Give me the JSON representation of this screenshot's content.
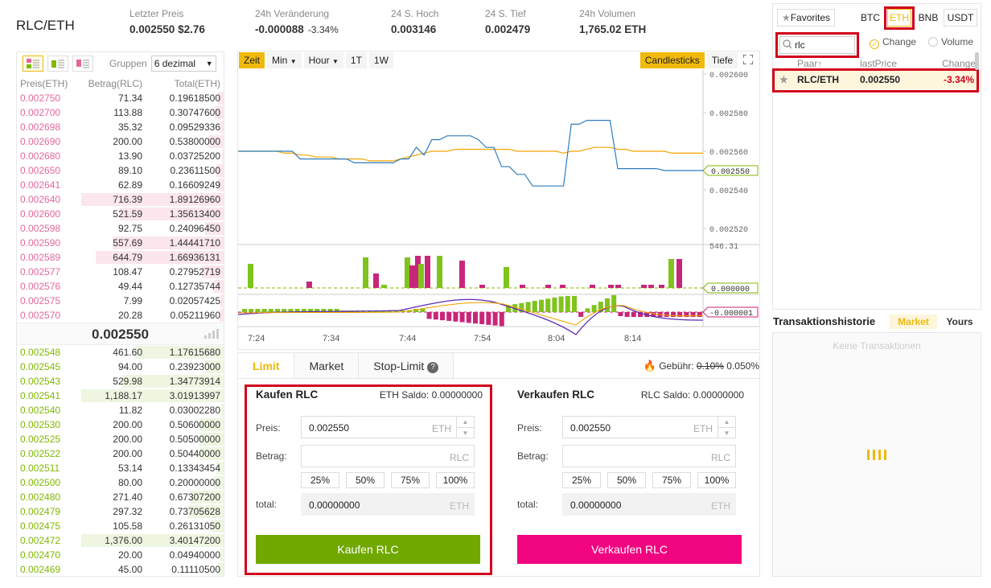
{
  "ticker": {
    "pair": "RLC/ETH",
    "last_price_label": "Letzter Preis",
    "last_price": "0.002550",
    "last_price_usd": "$2.76",
    "change_label": "24h Veränderung",
    "change": "-0.000088",
    "change_pct": "-3.34%",
    "high_label": "24 S. Hoch",
    "high": "0.003146",
    "low_label": "24 S. Tief",
    "low": "0.002479",
    "volume_label": "24h Volumen",
    "volume": "1,765.02 ETH"
  },
  "orderbook": {
    "group_label": "Gruppen",
    "group_value": "6 dezimal",
    "headers": [
      "Preis(ETH)",
      "Betrag(RLC)",
      "Total(ETH)"
    ],
    "asks": [
      {
        "p": "0.002750",
        "a": "71.34",
        "t": "0.19618500",
        "d": 0.04
      },
      {
        "p": "0.002700",
        "a": "113.88",
        "t": "0.30747600",
        "d": 0.06
      },
      {
        "p": "0.002698",
        "a": "35.32",
        "t": "0.09529336",
        "d": 0.02
      },
      {
        "p": "0.002690",
        "a": "200.00",
        "t": "0.53800000",
        "d": 0.11
      },
      {
        "p": "0.002680",
        "a": "13.90",
        "t": "0.03725200",
        "d": 0.01
      },
      {
        "p": "0.002650",
        "a": "89.10",
        "t": "0.23611500",
        "d": 0.05
      },
      {
        "p": "0.002641",
        "a": "62.89",
        "t": "0.16609249",
        "d": 0.04
      },
      {
        "p": "0.002640",
        "a": "716.39",
        "t": "1.89126960",
        "d": 1.0
      },
      {
        "p": "0.002600",
        "a": "521.59",
        "t": "1.35613400",
        "d": 0.73
      },
      {
        "p": "0.002598",
        "a": "92.75",
        "t": "0.24096450",
        "d": 0.13
      },
      {
        "p": "0.002590",
        "a": "557.69",
        "t": "1.44441710",
        "d": 0.78
      },
      {
        "p": "0.002589",
        "a": "644.79",
        "t": "1.66936131",
        "d": 0.9
      },
      {
        "p": "0.002577",
        "a": "108.47",
        "t": "0.27952719",
        "d": 0.15
      },
      {
        "p": "0.002576",
        "a": "49.44",
        "t": "0.12735744",
        "d": 0.07
      },
      {
        "p": "0.002575",
        "a": "7.99",
        "t": "0.02057425",
        "d": 0.02
      },
      {
        "p": "0.002570",
        "a": "20.28",
        "t": "0.05211960",
        "d": 0.03
      }
    ],
    "mid_price": "0.002550",
    "bids": [
      {
        "p": "0.002548",
        "a": "461.60",
        "t": "1.17615680",
        "d": 0.62
      },
      {
        "p": "0.002545",
        "a": "94.00",
        "t": "0.23923000",
        "d": 0.13
      },
      {
        "p": "0.002543",
        "a": "529.98",
        "t": "1.34773914",
        "d": 0.71
      },
      {
        "p": "0.002541",
        "a": "1,188.17",
        "t": "3.01913997",
        "d": 1.0
      },
      {
        "p": "0.002540",
        "a": "11.82",
        "t": "0.03002280",
        "d": 0.02
      },
      {
        "p": "0.002530",
        "a": "200.00",
        "t": "0.50600000",
        "d": 0.17
      },
      {
        "p": "0.002525",
        "a": "200.00",
        "t": "0.50500000",
        "d": 0.17
      },
      {
        "p": "0.002522",
        "a": "200.00",
        "t": "0.50440000",
        "d": 0.17
      },
      {
        "p": "0.002511",
        "a": "53.14",
        "t": "0.13343454",
        "d": 0.05
      },
      {
        "p": "0.002500",
        "a": "80.00",
        "t": "0.20000000",
        "d": 0.07
      },
      {
        "p": "0.002480",
        "a": "271.40",
        "t": "0.67307200",
        "d": 0.23
      },
      {
        "p": "0.002479",
        "a": "297.32",
        "t": "0.73705628",
        "d": 0.25
      },
      {
        "p": "0.002475",
        "a": "105.58",
        "t": "0.26131050",
        "d": 0.09
      },
      {
        "p": "0.002472",
        "a": "1,376.00",
        "t": "3.40147200",
        "d": 1.0
      },
      {
        "p": "0.002470",
        "a": "20.00",
        "t": "0.04940000",
        "d": 0.02
      },
      {
        "p": "0.002469",
        "a": "45.00",
        "t": "0.11110500",
        "d": 0.04
      }
    ]
  },
  "chart": {
    "toolbar": [
      "Zeit",
      "Min",
      "Hour",
      "1T",
      "1W"
    ],
    "candlesticks": "Candlesticks",
    "depth": "Tiefe",
    "price_ticks": [
      "0.002600",
      "0.002580",
      "0.002560",
      "0.002540",
      "0.002520"
    ],
    "price_tag": "0.002550",
    "vol_top": "546.31",
    "vol_tag": "0.000000",
    "macd_tag": "-0.000001",
    "time_labels": [
      "7:24",
      "7:34",
      "7:44",
      "7:54",
      "8:04",
      "8:14"
    ],
    "price_line": [
      0.00256,
      0.00256,
      0.00256,
      0.00256,
      0.00256,
      0.00256,
      0.00256,
      0.00256,
      0.002556,
      0.002556,
      0.002556,
      0.002556,
      0.002556,
      0.002556,
      0.002556,
      0.002554,
      0.002554,
      0.002554,
      0.002554,
      0.002554,
      0.002554,
      0.002556,
      0.002556,
      0.002562,
      0.002558,
      0.002566,
      0.002566,
      0.002568,
      0.002568,
      0.002568,
      0.002568,
      0.002566,
      0.002562,
      0.002562,
      0.002552,
      0.002552,
      0.002548,
      0.002548,
      0.002542,
      0.002542,
      0.002542,
      0.002542,
      0.002542,
      0.002574,
      0.002574,
      0.002576,
      0.002576,
      0.002576,
      0.002576,
      0.002551,
      0.002551,
      0.002551,
      0.002551,
      0.002551,
      0.002551,
      0.00255,
      0.00255,
      0.00255,
      0.00255,
      0.00255,
      0.00255
    ],
    "ma_line": [
      0.00256,
      0.00256,
      0.00256,
      0.00256,
      0.00256,
      0.00256,
      0.002559,
      0.002559,
      0.002558,
      0.002558,
      0.002557,
      0.002557,
      0.002557,
      0.002556,
      0.002556,
      0.002556,
      0.002556,
      0.002555,
      0.002555,
      0.002555,
      0.002555,
      0.002556,
      0.002557,
      0.002558,
      0.002559,
      0.00256,
      0.00256,
      0.00256,
      0.002561,
      0.002561,
      0.002561,
      0.002561,
      0.002561,
      0.002561,
      0.002561,
      0.002561,
      0.00256,
      0.00256,
      0.00256,
      0.00256,
      0.00256,
      0.00256,
      0.002559,
      0.00256,
      0.00256,
      0.002561,
      0.002562,
      0.002562,
      0.002562,
      0.002561,
      0.002561,
      0.00256,
      0.00256,
      0.00256,
      0.00256,
      0.00256,
      0.002559,
      0.002559,
      0.002559,
      0.002559,
      0.002559
    ],
    "volume": [
      0,
      40,
      10,
      0,
      0,
      0,
      0,
      0,
      0,
      0,
      10,
      0,
      0,
      0,
      0,
      0,
      0,
      0,
      0,
      0,
      15,
      20,
      20,
      0,
      0,
      0,
      0,
      0,
      0,
      0,
      0,
      0,
      0,
      0,
      0,
      0,
      0,
      0,
      0,
      0,
      0,
      0,
      0,
      0,
      0,
      0,
      0,
      0,
      0,
      0,
      0,
      0,
      0,
      0,
      0,
      0,
      0,
      0,
      0,
      0,
      0
    ],
    "volume_series": [
      {
        "i": 1,
        "v": 140,
        "c": "g"
      },
      {
        "i": 9,
        "v": 35,
        "c": "g"
      },
      {
        "i": 16,
        "v": 260,
        "c": "p"
      },
      {
        "i": 19,
        "v": 480,
        "c": "g"
      },
      {
        "i": 20,
        "v": 120,
        "c": "p"
      },
      {
        "i": 21,
        "v": 60,
        "c": "g"
      },
      {
        "i": 25,
        "v": 410,
        "c": "p"
      },
      {
        "i": 27,
        "v": 160,
        "c": "g"
      },
      {
        "i": 30,
        "v": 520,
        "c": "g"
      },
      {
        "i": 31,
        "v": 450,
        "c": "g"
      },
      {
        "i": 32,
        "v": 560,
        "c": "g"
      },
      {
        "i": 33,
        "v": 490,
        "c": "g"
      },
      {
        "i": 34,
        "v": 480,
        "c": "p"
      },
      {
        "i": 40,
        "v": 400,
        "c": "p"
      },
      {
        "i": 46,
        "v": 290,
        "c": "g"
      },
      {
        "i": 49,
        "v": 280,
        "c": "p"
      },
      {
        "i": 56,
        "v": 400,
        "c": "p"
      },
      {
        "i": 57,
        "v": 410,
        "c": "p"
      },
      {
        "i": 69,
        "v": 40,
        "c": "p"
      },
      {
        "i": 75,
        "v": 40,
        "c": "p"
      },
      {
        "i": 84,
        "v": 40,
        "c": "p"
      },
      {
        "i": 90,
        "v": 40,
        "c": "p"
      },
      {
        "i": 101,
        "v": 40,
        "c": "p"
      },
      {
        "i": 105,
        "v": 40,
        "c": "p"
      },
      {
        "i": 133,
        "v": 40,
        "c": "p"
      },
      {
        "i": 143,
        "v": 240,
        "c": "g"
      },
      {
        "i": 154,
        "v": 340,
        "c": "p"
      },
      {
        "i": 162,
        "v": 40,
        "c": "p"
      },
      {
        "i": 165,
        "v": 40,
        "c": "g"
      },
      {
        "i": 172,
        "v": 40,
        "c": "p"
      },
      {
        "i": 180,
        "v": 230,
        "c": "g"
      },
      {
        "i": 207,
        "v": 490,
        "c": "p"
      },
      {
        "i": 211,
        "v": 500,
        "c": "g"
      },
      {
        "i": 213,
        "v": 480,
        "c": "p"
      }
    ]
  },
  "trade": {
    "tabs": [
      "Limit",
      "Market",
      "Stop-Limit"
    ],
    "fee_label": "Gebühr:",
    "fee_old": "0.10%",
    "fee_new": "0.050%",
    "buy": {
      "title": "Kaufen RLC",
      "balance": "ETH Saldo: 0.00000000",
      "price_label": "Preis:",
      "price": "0.002550",
      "price_unit": "ETH",
      "amount_label": "Betrag:",
      "amount_unit": "RLC",
      "total_label": "total:",
      "total": "0.00000000",
      "total_unit": "ETH",
      "button": "Kaufen RLC"
    },
    "sell": {
      "title": "Verkaufen RLC",
      "balance": "RLC Saldo: 0.00000000",
      "price_label": "Preis:",
      "price": "0.002550",
      "price_unit": "ETH",
      "amount_label": "Betrag:",
      "amount_unit": "RLC",
      "total_label": "total:",
      "total": "0.00000000",
      "total_unit": "ETH",
      "button": "Verkaufen RLC"
    },
    "pcts": [
      "25%",
      "50%",
      "75%",
      "100%"
    ]
  },
  "markets": {
    "favorites": "Favorites",
    "quotes": [
      "BTC",
      "ETH",
      "BNB",
      "USDT"
    ],
    "search_value": "rlc",
    "sort_change": "Change",
    "sort_volume": "Volume",
    "col_pair": "Paar",
    "col_price": "lastPrice",
    "col_change": "Change",
    "row": {
      "pair": "RLC/ETH",
      "price": "0.002550",
      "change": "-3.34%"
    }
  },
  "history": {
    "title": "Transaktionshistorie",
    "tab_market": "Market",
    "tab_yours": "Yours",
    "empty": "Keine Transaktionen"
  },
  "colors": {
    "accent": "#f0b90b",
    "buy": "#70a800",
    "sell": "#f0047f",
    "highlight": "#d0021b"
  }
}
